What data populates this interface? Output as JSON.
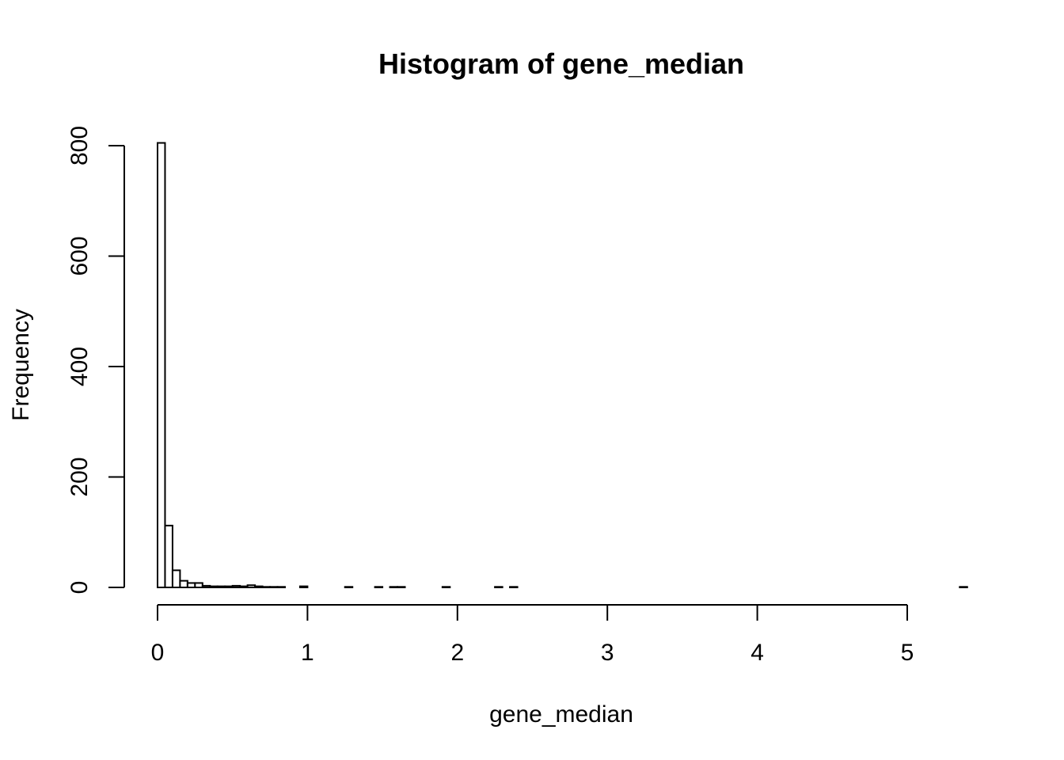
{
  "chart_data": {
    "type": "bar",
    "title": "Histogram of gene_median",
    "xlabel": "gene_median",
    "ylabel": "Frequency",
    "xlim": [
      0,
      5.4
    ],
    "ylim": [
      0,
      800
    ],
    "x_ticks": [
      0,
      1,
      2,
      3,
      4,
      5
    ],
    "y_ticks": [
      0,
      200,
      400,
      600,
      800
    ],
    "bin_width": 0.05,
    "bin_starts": [
      0,
      0.05,
      0.1,
      0.15,
      0.2,
      0.25,
      0.3,
      0.35,
      0.4,
      0.45,
      0.5,
      0.55,
      0.6,
      0.65,
      0.7,
      0.75,
      0.8,
      0.95,
      1.25,
      1.45,
      1.55,
      1.6,
      1.9,
      2.25,
      2.35,
      5.35
    ],
    "values": [
      805,
      112,
      31,
      12,
      8,
      8,
      3,
      2,
      2,
      2,
      3,
      2,
      4,
      2,
      1,
      1,
      1,
      2,
      1,
      1,
      1,
      1,
      1,
      1,
      1,
      1
    ],
    "grid": false,
    "legend": "none"
  }
}
